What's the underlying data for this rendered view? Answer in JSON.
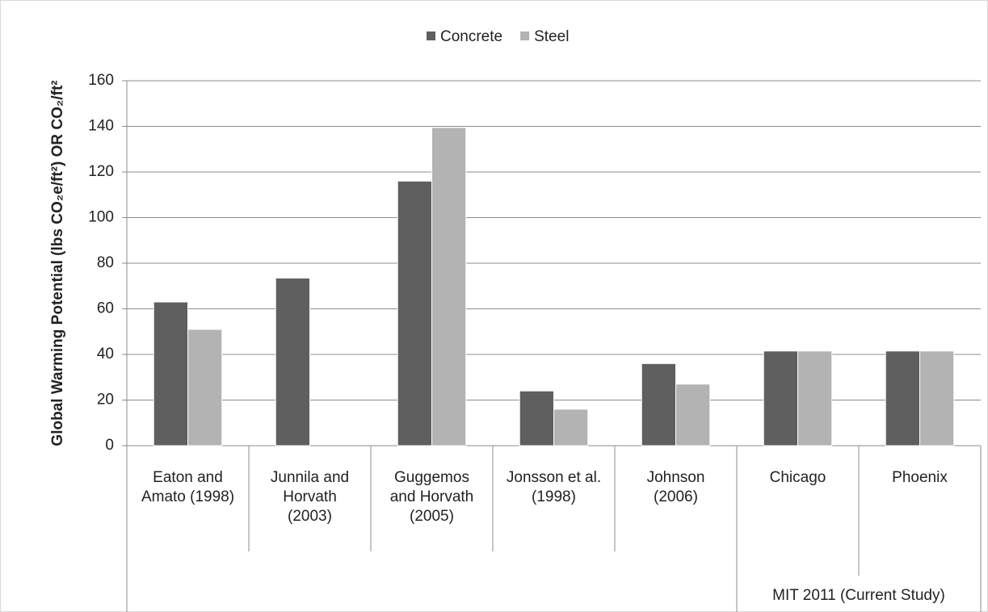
{
  "chart_data": {
    "type": "bar",
    "y_label": "Global Warming Potential (lbs CO₂e/ft²) OR CO₂/ft²",
    "categories": [
      "Eaton and\nAmato (1998)",
      "Junnila and\nHorvath\n(2003)",
      "Guggemos\nand Horvath\n(2005)",
      "Jonsson et al.\n(1998)",
      "Johnson\n(2006)",
      "Chicago",
      "Phoenix"
    ],
    "group_label": "MIT 2011 (Current Study)",
    "series": [
      {
        "name": "Concrete",
        "color": "#5f5f5f",
        "values": [
          63,
          73.5,
          116,
          24,
          36,
          41.5,
          41.5
        ]
      },
      {
        "name": "Steel",
        "color": "#b3b3b3",
        "values": [
          51,
          null,
          139.5,
          16,
          27,
          41.5,
          41.5
        ]
      }
    ],
    "ylim": [
      0,
      160
    ],
    "yticks": [
      0,
      20,
      40,
      60,
      80,
      100,
      120,
      140,
      160
    ],
    "grid": true,
    "legend": "top"
  }
}
